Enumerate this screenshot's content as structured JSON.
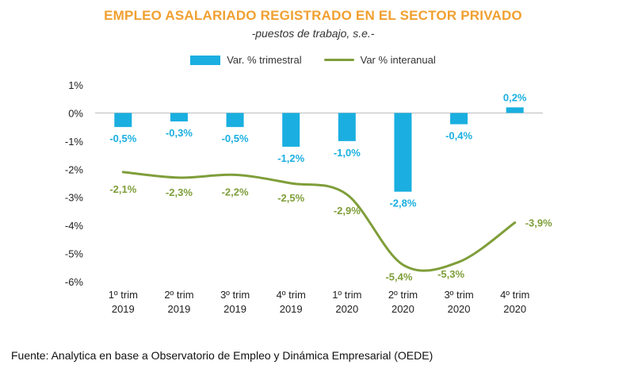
{
  "chart_data": {
    "type": "bar",
    "title": "EMPLEO ASALARIADO REGISTRADO EN EL SECTOR PRIVADO",
    "subtitle": "-puestos de trabajo, s.e.-",
    "categories": [
      [
        "1º trim",
        "2019"
      ],
      [
        "2º trim",
        "2019"
      ],
      [
        "3º trim",
        "2019"
      ],
      [
        "4º trim",
        "2019"
      ],
      [
        "1º trim",
        "2020"
      ],
      [
        "2º trim",
        "2020"
      ],
      [
        "3º trim",
        "2020"
      ],
      [
        "4º trim",
        "2020"
      ]
    ],
    "series": [
      {
        "name": "Var. % trimestral",
        "kind": "bar",
        "values": [
          -0.5,
          -0.3,
          -0.5,
          -1.2,
          -1.0,
          -2.8,
          -0.4,
          0.2
        ],
        "labels": [
          "-0,5%",
          "-0,3%",
          "-0,5%",
          "-1,2%",
          "-1,0%",
          "-2,8%",
          "-0,4%",
          "0,2%"
        ]
      },
      {
        "name": "Var % interanual",
        "kind": "line",
        "values": [
          -2.1,
          -2.3,
          -2.2,
          -2.5,
          -2.9,
          -5.4,
          -5.3,
          -3.9
        ],
        "labels": [
          "-2,1%",
          "-2,3%",
          "-2,2%",
          "-2,5%",
          "-2,9%",
          "-5,4%",
          "-5,3%",
          "-3,9%"
        ]
      }
    ],
    "yticks": [
      {
        "value": 1,
        "label": "1%"
      },
      {
        "value": 0,
        "label": "0%"
      },
      {
        "value": -1,
        "label": "-1%"
      },
      {
        "value": -2,
        "label": "-2%"
      },
      {
        "value": -3,
        "label": "-3%"
      },
      {
        "value": -4,
        "label": "-4%"
      },
      {
        "value": -5,
        "label": "-5%"
      },
      {
        "value": -6,
        "label": "-6%"
      }
    ],
    "ylim": [
      -6,
      1
    ],
    "colors": {
      "bar": "#1aafe0",
      "line": "#7f9e3a",
      "title": "#f0a030"
    }
  },
  "source": "Fuente: Analytica en base a Observatorio de Empleo y Dinámica Empresarial (OEDE)"
}
